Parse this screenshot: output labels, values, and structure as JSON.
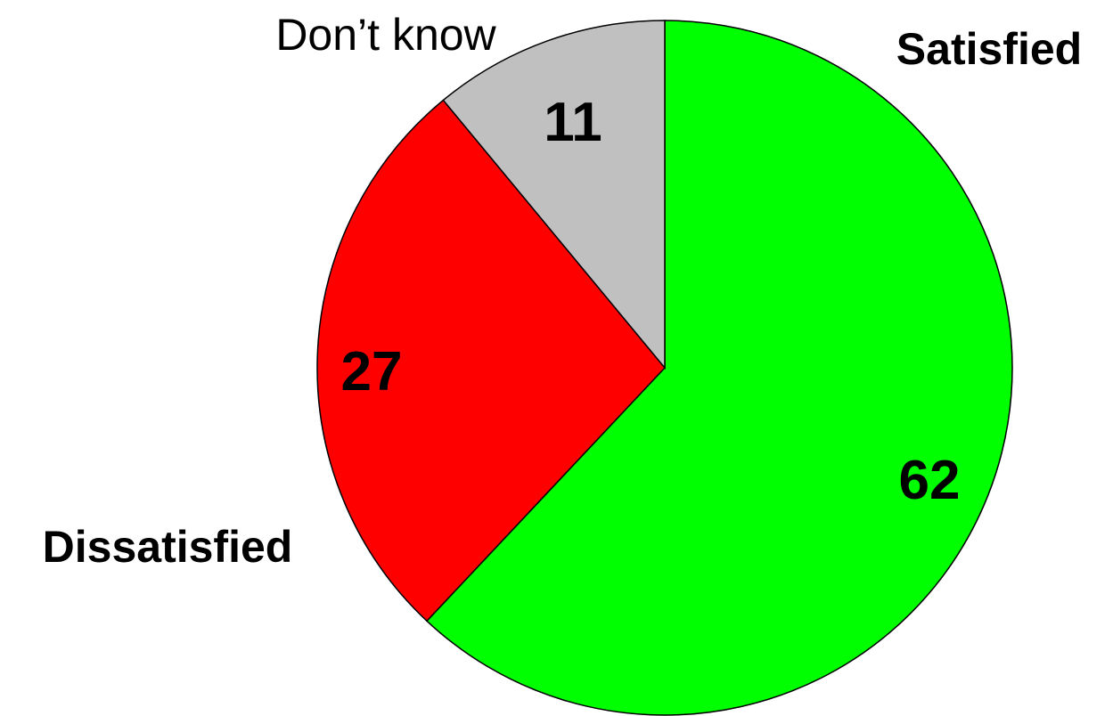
{
  "chart_data": {
    "type": "pie",
    "start_angle": "12 o'clock",
    "direction": "clockwise",
    "slices": [
      {
        "label": "Satisfied",
        "value": 62,
        "color": "#00ff00",
        "label_bold": true
      },
      {
        "label": "Dissatisfied",
        "value": 27,
        "color": "#ff0000",
        "label_bold": true
      },
      {
        "label": "Don’t know",
        "value": 11,
        "color": "#c0c0c0",
        "label_bold": false
      }
    ]
  }
}
